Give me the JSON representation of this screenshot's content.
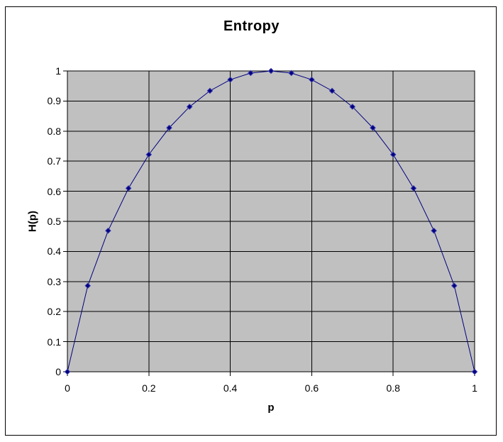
{
  "figure": {
    "title": "Entropy",
    "background": "#ffffff",
    "border_color": "#000000"
  },
  "chart": {
    "y_axis": {
      "title": "H(p)",
      "tick_labels_top_to_bottom": [
        "1",
        "0.9",
        "0.8",
        "0.7",
        "0.6",
        "0.5",
        "0.4",
        "0.3",
        "0.2",
        "0.1",
        "0"
      ]
    },
    "x_axis": {
      "title": "p",
      "tick_labels_left_to_right": [
        "0",
        "0.2",
        "0.4",
        "0.6",
        "0.8",
        "1"
      ]
    },
    "colors": {
      "plot_background": "#c0c0c0",
      "gridline": "#000000",
      "axis_line": "#000000",
      "series_line": "#000080",
      "marker_fill": "#000080",
      "marker_edge": "#3a3aae",
      "text": "#000000"
    }
  },
  "chart_data": {
    "type": "line",
    "title": "Entropy",
    "xlabel": "p",
    "ylabel": "H(p)",
    "x": [
      0,
      0.05,
      0.1,
      0.15,
      0.2,
      0.25,
      0.3,
      0.35,
      0.4,
      0.45,
      0.5,
      0.55,
      0.6,
      0.65,
      0.7,
      0.75,
      0.8,
      0.85,
      0.9,
      0.95,
      1
    ],
    "series": [
      {
        "name": "H(p)",
        "values": [
          0,
          0.286,
          0.469,
          0.61,
          0.722,
          0.811,
          0.881,
          0.934,
          0.971,
          0.993,
          1,
          0.993,
          0.971,
          0.934,
          0.881,
          0.811,
          0.722,
          0.61,
          0.469,
          0.286,
          0
        ]
      }
    ],
    "xlim": [
      0,
      1
    ],
    "ylim": [
      0,
      1
    ],
    "x_gridlines": [
      0,
      0.2,
      0.4,
      0.6,
      0.8,
      1
    ],
    "y_gridlines": [
      0,
      0.1,
      0.2,
      0.3,
      0.4,
      0.5,
      0.6,
      0.7,
      0.8,
      0.9,
      1
    ],
    "grid": true,
    "legend": false,
    "marker": "diamond"
  }
}
